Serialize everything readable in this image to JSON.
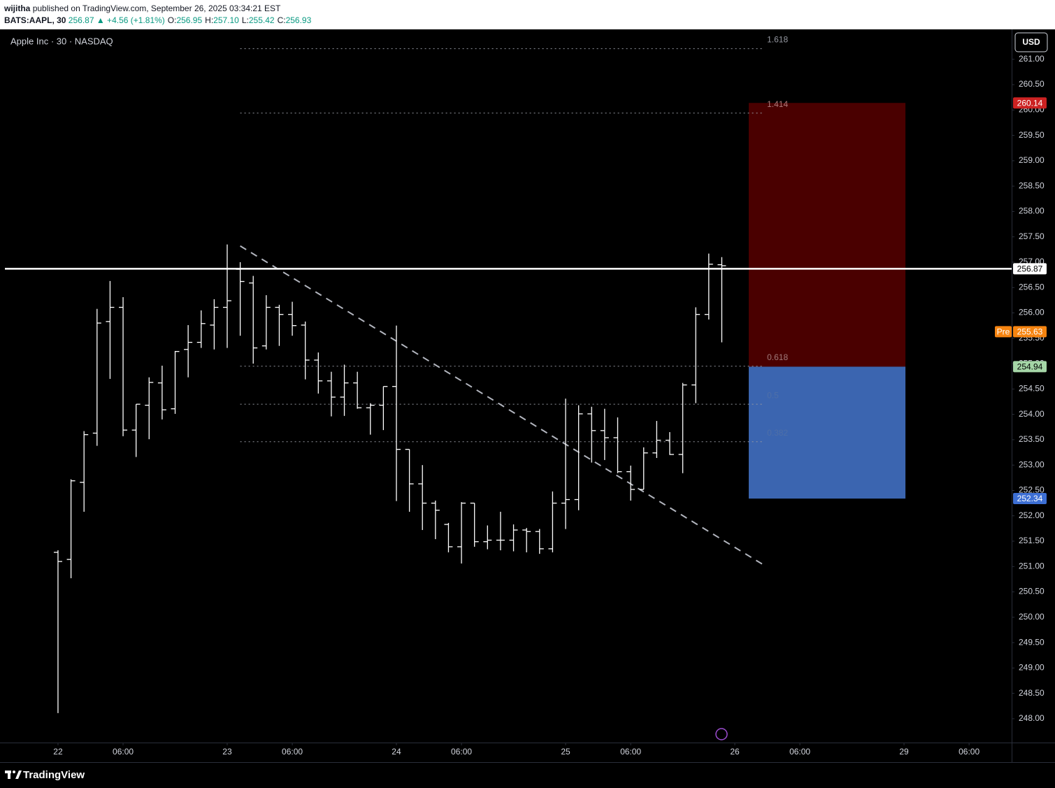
{
  "header": {
    "author": "wijitha",
    "published": "published on TradingView.com, September 26, 2025 03:34:21 EST",
    "symbol": "BATS:AAPL, 30",
    "last": "256.87",
    "change": "▲ +4.56 (+1.81%)",
    "ohlc": [
      {
        "label": "O:",
        "value": "256.95"
      },
      {
        "label": "H:",
        "value": "257.10"
      },
      {
        "label": "L:",
        "value": "255.42"
      },
      {
        "label": "C:",
        "value": "256.93"
      }
    ]
  },
  "footer": {
    "brand": "TradingView"
  },
  "chart_data": {
    "type": "ohlc",
    "title": "Apple Inc · 30 · NASDAQ",
    "currency": "USD",
    "color": "#ffffff",
    "grid": false,
    "ohlc": {
      "open": [
        251.28,
        251.14,
        252.66,
        253.63,
        255.83,
        256.11,
        253.69,
        254.18,
        254.62,
        254.11,
        255.28,
        255.42,
        255.76,
        256.11,
        256.86,
        256.59,
        255.35,
        256.11,
        255.97,
        255.76,
        255.07,
        254.66,
        254.34,
        254.62,
        254.13,
        254.18,
        254.55,
        253.31,
        252.63,
        252.25,
        251.83,
        251.39,
        252.25,
        251.49,
        251.52,
        251.52,
        251.72,
        251.69,
        251.35,
        252.25,
        252.32,
        254.01,
        253.68,
        253.54,
        252.87,
        252.52,
        253.24,
        253.49,
        253.21,
        254.58,
        255.97,
        256.95
      ],
      "high": [
        251.32,
        252.72,
        253.67,
        256.08,
        256.63,
        256.31,
        254.2,
        254.73,
        254.96,
        255.25,
        255.76,
        256.05,
        256.27,
        257.35,
        257.0,
        256.73,
        256.35,
        256.16,
        256.22,
        255.83,
        255.22,
        254.84,
        254.98,
        254.84,
        254.22,
        254.55,
        255.75,
        253.31,
        253.0,
        252.3,
        251.86,
        252.27,
        252.25,
        251.81,
        252.08,
        251.83,
        251.76,
        251.74,
        252.48,
        254.31,
        254.18,
        254.15,
        254.11,
        253.94,
        252.99,
        253.35,
        253.87,
        253.65,
        254.62,
        256.11,
        257.17,
        257.1
      ],
      "low": [
        248.11,
        250.77,
        252.08,
        253.38,
        254.7,
        253.57,
        253.16,
        253.51,
        253.9,
        254.01,
        254.73,
        255.31,
        255.28,
        255.31,
        255.55,
        255.0,
        255.28,
        255.35,
        255.55,
        254.69,
        254.41,
        253.96,
        253.97,
        254.11,
        253.6,
        253.69,
        252.29,
        252.08,
        251.72,
        251.54,
        251.28,
        251.06,
        251.39,
        251.34,
        251.32,
        251.3,
        251.28,
        251.25,
        251.28,
        251.74,
        252.11,
        253.05,
        253.1,
        252.84,
        252.3,
        252.52,
        253.14,
        253.2,
        252.84,
        254.22,
        255.87,
        255.42
      ],
      "close": [
        251.1,
        252.69,
        253.6,
        255.8,
        256.11,
        253.69,
        254.2,
        254.63,
        254.09,
        255.24,
        255.42,
        255.79,
        256.11,
        256.24,
        256.62,
        255.31,
        256.11,
        255.97,
        255.75,
        255.07,
        254.66,
        254.34,
        254.62,
        254.13,
        254.18,
        254.55,
        253.31,
        252.63,
        252.25,
        252.11,
        251.39,
        252.25,
        251.49,
        251.52,
        251.52,
        251.72,
        251.69,
        251.35,
        252.25,
        252.32,
        254.01,
        253.68,
        253.54,
        252.87,
        252.52,
        253.24,
        253.49,
        253.21,
        254.58,
        255.97,
        256.96,
        256.93
      ]
    },
    "xlim": [
      -4.08,
      73.27
    ],
    "xticks": [
      {
        "value": 0,
        "label": "22"
      },
      {
        "value": 5,
        "label": "06:00"
      },
      {
        "value": 13,
        "label": "23"
      },
      {
        "value": 18,
        "label": "06:00"
      },
      {
        "value": 26,
        "label": "24"
      },
      {
        "value": 31,
        "label": "06:00"
      },
      {
        "value": 39,
        "label": "25"
      },
      {
        "value": 44,
        "label": "06:00"
      },
      {
        "value": 52,
        "label": "26"
      },
      {
        "value": 57,
        "label": "06:00"
      },
      {
        "value": 65,
        "label": "29"
      },
      {
        "value": 70,
        "label": "06:00"
      }
    ],
    "ylim": [
      247.53,
      261.59
    ],
    "yticks": [
      {
        "value": 248,
        "label": "248.00"
      },
      {
        "value": 248.5,
        "label": "248.50"
      },
      {
        "value": 249,
        "label": "249.00"
      },
      {
        "value": 249.5,
        "label": "249.50"
      },
      {
        "value": 250,
        "label": "250.00"
      },
      {
        "value": 250.5,
        "label": "250.50"
      },
      {
        "value": 251,
        "label": "251.00"
      },
      {
        "value": 251.5,
        "label": "251.50"
      },
      {
        "value": 252,
        "label": "252.00"
      },
      {
        "value": 252.5,
        "label": "252.50"
      },
      {
        "value": 253,
        "label": "253.00"
      },
      {
        "value": 253.5,
        "label": "253.50"
      },
      {
        "value": 254,
        "label": "254.00"
      },
      {
        "value": 254.5,
        "label": "254.50"
      },
      {
        "value": 255,
        "label": "255.00"
      },
      {
        "value": 255.5,
        "label": "255.50"
      },
      {
        "value": 256,
        "label": "256.00"
      },
      {
        "value": 256.5,
        "label": "256.50"
      },
      {
        "value": 257,
        "label": "257.00"
      },
      {
        "value": 257.5,
        "label": "257.50"
      },
      {
        "value": 258,
        "label": "258.00"
      },
      {
        "value": 258.5,
        "label": "258.50"
      },
      {
        "value": 259,
        "label": "259.00"
      },
      {
        "value": 259.5,
        "label": "259.50"
      },
      {
        "value": 260,
        "label": "260.00"
      },
      {
        "value": 260.5,
        "label": "260.50"
      },
      {
        "value": 261,
        "label": "261.00"
      }
    ],
    "fib": {
      "x": [
        14,
        54.1
      ],
      "levels": [
        {
          "label": "1.618",
          "value": 261.21,
          "color": "#9598a1"
        },
        {
          "label": "1.414",
          "value": 259.94,
          "color": "#b07a7a"
        },
        {
          "label": "0.618",
          "value": 254.95,
          "color": "#a07a7a"
        },
        {
          "label": "0.5",
          "value": 254.2,
          "color": "#4e6fa8"
        },
        {
          "label": "0.382",
          "value": 253.46,
          "color": "#4e6fa8"
        }
      ]
    },
    "trend": {
      "x": [
        14,
        54.1
      ],
      "y": [
        257.32,
        251.05
      ],
      "color": "#b2b5be"
    },
    "position": {
      "x": [
        53.07,
        65.11
      ],
      "stop": 260.14,
      "entry": 254.94,
      "target": 252.34,
      "stop_color": "#4a0000",
      "target_color": "#3b65b0"
    },
    "price_labels": [
      {
        "value": 260.14,
        "color": "#cc2222",
        "text_color": "#ffffff"
      },
      {
        "value": 256.87,
        "color": "#ffffff",
        "text_color": "#000000",
        "line": true
      },
      {
        "value": 255.63,
        "color": "#f68410",
        "text_color": "#ffffff",
        "tag": "Pre"
      },
      {
        "value": 254.94,
        "color": "#a5d6a7",
        "text_color": "#000000"
      },
      {
        "value": 252.34,
        "color": "#3d6fd4",
        "text_color": "#ffffff"
      }
    ]
  }
}
